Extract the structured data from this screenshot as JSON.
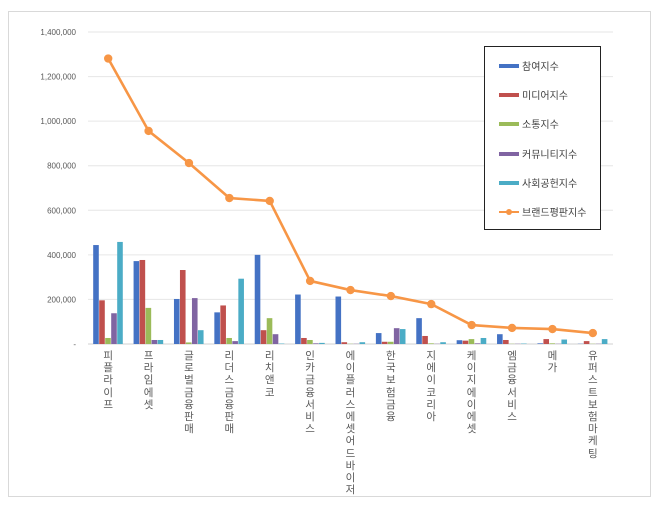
{
  "chart_data": {
    "type": "bar",
    "title": "",
    "xlabel": "",
    "ylabel": "",
    "ylim": [
      0,
      1400000
    ],
    "yticks": [
      "-",
      "200,000",
      "400,000",
      "600,000",
      "800,000",
      "1,000,000",
      "1,200,000",
      "1,400,000"
    ],
    "grid": true,
    "legend_position": "right-inside",
    "categories": [
      "피플라이프",
      "프라임에셋",
      "글로벌금융판매",
      "리더스금융판매",
      "리치앤코",
      "인카금융서비스",
      "에이플러스에셋어드바이저",
      "한국보험금융",
      "지에이코리아",
      "케이지에이에셋",
      "엠금융서비스",
      "메가",
      "유퍼스트보험마케팅"
    ],
    "series": [
      {
        "name": "참여지수",
        "type": "bar",
        "color": "#4472C4",
        "values": [
          444000,
          372000,
          202000,
          142000,
          400000,
          222000,
          213000,
          49000,
          116000,
          17000,
          44000,
          3000,
          1000
        ]
      },
      {
        "name": "미디어지수",
        "type": "bar",
        "color": "#C0504D",
        "values": [
          196000,
          377000,
          332000,
          173000,
          62000,
          27000,
          8000,
          10000,
          36000,
          15000,
          18000,
          22000,
          13000
        ]
      },
      {
        "name": "소통지수",
        "type": "bar",
        "color": "#9BBB59",
        "values": [
          27000,
          162000,
          7000,
          27000,
          116000,
          18000,
          1000,
          10000,
          3000,
          22000,
          1000,
          3000,
          1000
        ]
      },
      {
        "name": "커뮤니티지수",
        "type": "bar",
        "color": "#8064A2",
        "values": [
          138000,
          18000,
          206000,
          13000,
          44000,
          3000,
          1000,
          71000,
          1000,
          3000,
          1000,
          1000,
          1000
        ]
      },
      {
        "name": "사회공헌지수",
        "type": "bar",
        "color": "#4BACC6",
        "values": [
          458000,
          18000,
          62000,
          293000,
          2000,
          5000,
          8000,
          67000,
          8000,
          27000,
          2000,
          20000,
          22000
        ]
      },
      {
        "name": "브랜드평판지수",
        "type": "line",
        "color": "#F79646",
        "values": [
          1281000,
          956000,
          812000,
          655000,
          642000,
          283000,
          242000,
          215000,
          179000,
          85000,
          72000,
          67000,
          49000
        ]
      }
    ]
  },
  "legend": {
    "items": [
      {
        "label": "참여지수",
        "color": "#4472C4",
        "kind": "bar"
      },
      {
        "label": "미디어지수",
        "color": "#C0504D",
        "kind": "bar"
      },
      {
        "label": "소통지수",
        "color": "#9BBB59",
        "kind": "bar"
      },
      {
        "label": "커뮤니티지수",
        "color": "#8064A2",
        "kind": "bar"
      },
      {
        "label": "사회공헌지수",
        "color": "#4BACC6",
        "kind": "bar"
      },
      {
        "label": "브랜드평판지수",
        "color": "#F79646",
        "kind": "line"
      }
    ]
  }
}
